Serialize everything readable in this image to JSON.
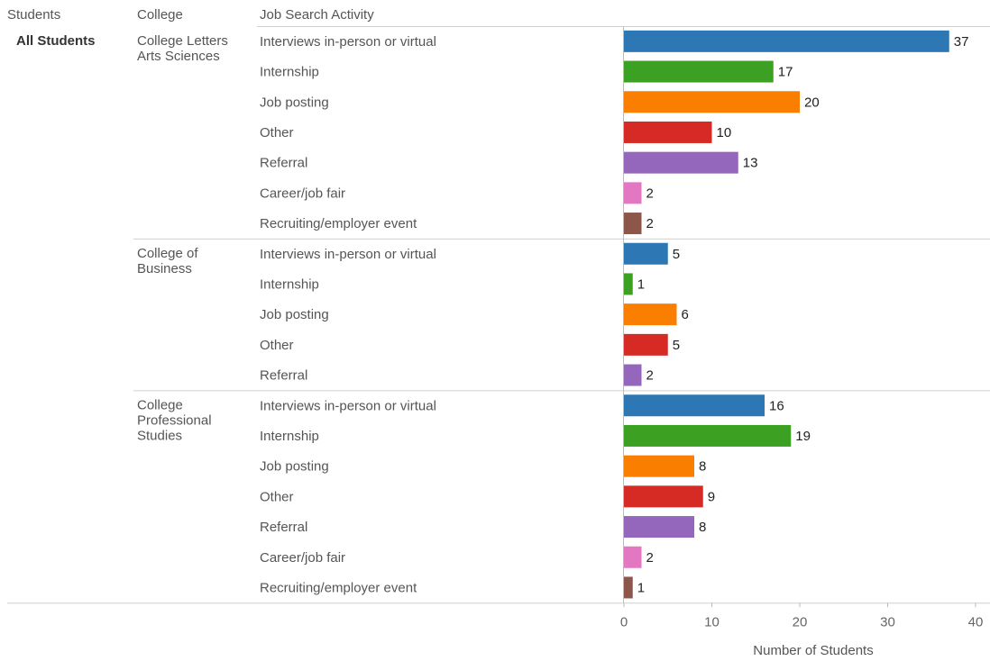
{
  "chart_data": {
    "type": "bar",
    "orientation": "horizontal",
    "headers": {
      "students": "Students",
      "college": "College",
      "activity": "Job Search Activity"
    },
    "students_group": "All Students",
    "xlabel": "Number of Students",
    "xlim": [
      0,
      40
    ],
    "xticks": [
      "0",
      "10",
      "20",
      "30",
      "40"
    ],
    "colors": {
      "Interviews in-person or virtual": "#2c77b4",
      "Internship": "#3ca022",
      "Job posting": "#fa7f00",
      "Other": "#d62a24",
      "Referral": "#9467bd",
      "Career/job fair": "#e377c2",
      "Recruiting/employer event": "#8c564b"
    },
    "groups": [
      {
        "college_lines": [
          "College Letters",
          "Arts Sciences"
        ],
        "rows": [
          {
            "activity": "Interviews in-person or virtual",
            "value": 37
          },
          {
            "activity": "Internship",
            "value": 17
          },
          {
            "activity": "Job posting",
            "value": 20
          },
          {
            "activity": "Other",
            "value": 10
          },
          {
            "activity": "Referral",
            "value": 13
          },
          {
            "activity": "Career/job fair",
            "value": 2
          },
          {
            "activity": "Recruiting/employer event",
            "value": 2
          }
        ]
      },
      {
        "college_lines": [
          "College of",
          "Business"
        ],
        "rows": [
          {
            "activity": "Interviews in-person or virtual",
            "value": 5
          },
          {
            "activity": "Internship",
            "value": 1
          },
          {
            "activity": "Job posting",
            "value": 6
          },
          {
            "activity": "Other",
            "value": 5
          },
          {
            "activity": "Referral",
            "value": 2
          }
        ]
      },
      {
        "college_lines": [
          "College",
          "Professional",
          "Studies"
        ],
        "rows": [
          {
            "activity": "Interviews in-person or virtual",
            "value": 16
          },
          {
            "activity": "Internship",
            "value": 19
          },
          {
            "activity": "Job posting",
            "value": 8
          },
          {
            "activity": "Other",
            "value": 9
          },
          {
            "activity": "Referral",
            "value": 8
          },
          {
            "activity": "Career/job fair",
            "value": 2
          },
          {
            "activity": "Recruiting/employer event",
            "value": 1
          }
        ]
      }
    ]
  }
}
